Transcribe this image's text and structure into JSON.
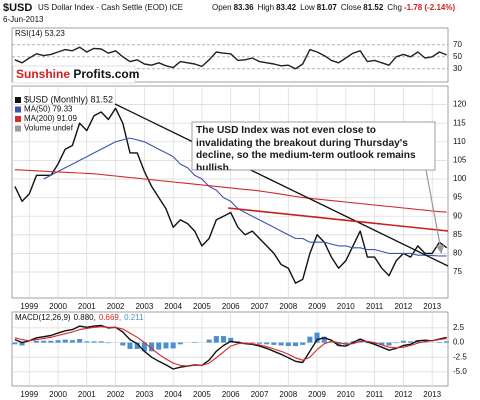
{
  "header": {
    "symbol": "$USD",
    "name": "US Dollar Index - Cash Settle (EOD) ICE",
    "date": "6-Jun-2013",
    "quote": [
      {
        "label": "Open",
        "value": "83.36"
      },
      {
        "label": "High",
        "value": "83.42"
      },
      {
        "label": "Low",
        "value": "81.07"
      },
      {
        "label": "Close",
        "value": "81.52"
      },
      {
        "label": "Chg",
        "value": "-1.78 (-2.14%)"
      }
    ]
  },
  "logo": {
    "first": "Sunshine",
    "second": "Profits.com"
  },
  "chart_data": [
    {
      "type": "line",
      "title": "RSI(14) 53.23",
      "grid_style": "dashed",
      "x": [
        1998.5,
        1998.75,
        1999,
        1999.25,
        1999.5,
        1999.75,
        2000,
        2000.25,
        2000.5,
        2000.75,
        2001,
        2001.25,
        2001.5,
        2001.75,
        2002,
        2002.25,
        2002.5,
        2002.75,
        2003,
        2003.25,
        2003.5,
        2003.75,
        2004,
        2004.25,
        2004.5,
        2004.75,
        2005,
        2005.25,
        2005.5,
        2005.75,
        2006,
        2006.25,
        2006.5,
        2006.75,
        2007,
        2007.25,
        2007.5,
        2007.75,
        2008,
        2008.25,
        2008.5,
        2008.75,
        2009,
        2009.25,
        2009.5,
        2009.75,
        2010,
        2010.25,
        2010.5,
        2010.75,
        2011,
        2011.25,
        2011.5,
        2011.75,
        2012,
        2012.25,
        2012.5,
        2012.75,
        2013,
        2013.25,
        2013.5
      ],
      "xlim": [
        1998.4,
        2013.55
      ],
      "ylim": [
        8,
        98
      ],
      "yticks": [
        70,
        50,
        30
      ],
      "series": [
        {
          "color": "#222222",
          "values": [
            45,
            40,
            48,
            55,
            52,
            54,
            58,
            62,
            60,
            66,
            58,
            64,
            63,
            56,
            60,
            50,
            42,
            45,
            38,
            36,
            40,
            35,
            32,
            42,
            40,
            38,
            34,
            45,
            58,
            56,
            55,
            44,
            45,
            48,
            42,
            40,
            38,
            35,
            36,
            30,
            38,
            62,
            58,
            52,
            44,
            40,
            48,
            56,
            60,
            42,
            44,
            40,
            36,
            50,
            54,
            50,
            58,
            48,
            50,
            58,
            53.23
          ]
        }
      ]
    },
    {
      "type": "line",
      "annotation": "The USD Index was not even close to invalidating the breakout during Thursday's decline, so the medium-term outlook remains bullish.",
      "legend_extra": [
        {
          "name": "Volume undef",
          "color": "#9a9a9a"
        }
      ],
      "x": [
        1998.5,
        1998.75,
        1999,
        1999.25,
        1999.5,
        1999.75,
        2000,
        2000.25,
        2000.5,
        2000.75,
        2001,
        2001.25,
        2001.5,
        2001.75,
        2002,
        2002.25,
        2002.5,
        2002.75,
        2003,
        2003.25,
        2003.5,
        2003.75,
        2004,
        2004.25,
        2004.5,
        2004.75,
        2005,
        2005.25,
        2005.5,
        2005.75,
        2006,
        2006.25,
        2006.5,
        2006.75,
        2007,
        2007.25,
        2007.5,
        2007.75,
        2008,
        2008.25,
        2008.5,
        2008.75,
        2009,
        2009.25,
        2009.5,
        2009.75,
        2010,
        2010.25,
        2010.5,
        2010.75,
        2011,
        2011.25,
        2011.5,
        2011.75,
        2012,
        2012.25,
        2012.5,
        2012.75,
        2013,
        2013.25,
        2013.5
      ],
      "xlim": [
        1998.4,
        2013.55
      ],
      "xticks": [
        1999,
        2000,
        2001,
        2002,
        2003,
        2004,
        2005,
        2006,
        2007,
        2008,
        2009,
        2010,
        2011,
        2012,
        2013
      ],
      "ylim": [
        68,
        125
      ],
      "yticks": [
        120,
        115,
        110,
        105,
        100,
        95,
        90,
        85,
        80,
        75
      ],
      "series": [
        {
          "name": "$USD (Monthly) 81.52",
          "color": "#111111",
          "values": [
            98,
            94,
            96,
            101,
            101,
            101,
            104,
            108,
            109,
            115,
            113,
            117,
            118,
            116,
            119,
            115,
            107,
            107,
            102,
            98,
            95,
            92,
            87,
            89,
            88,
            86,
            82,
            84,
            89,
            90,
            91,
            87,
            85,
            86,
            84,
            82,
            80,
            77,
            76,
            72,
            73,
            80,
            85,
            83,
            79,
            76,
            78,
            82,
            86,
            79,
            79,
            76,
            74,
            78,
            80,
            79,
            82,
            80,
            80,
            83,
            81.52
          ]
        },
        {
          "name": "MA(50) 79.33",
          "color": "#3a56a8",
          "values": [
            null,
            null,
            null,
            null,
            100,
            101,
            102,
            103,
            104,
            105,
            106,
            107,
            108,
            109,
            110,
            110.5,
            111,
            110.5,
            110,
            109,
            108,
            107,
            106,
            104,
            103,
            101,
            100,
            98,
            97,
            95,
            94,
            92,
            91,
            90,
            89,
            88,
            87,
            86,
            85,
            84,
            84,
            83,
            83,
            83,
            82.5,
            82,
            82,
            81.5,
            81.5,
            81,
            81,
            80.5,
            80,
            80,
            80,
            80,
            79.5,
            79.5,
            79.4,
            79.3,
            79.33
          ]
        },
        {
          "name": "MA(200) 91.09",
          "color": "#d42a2a",
          "values": [
            102.5,
            102.4,
            102.3,
            102.2,
            102.1,
            102,
            101.9,
            101.8,
            101.7,
            101.6,
            101.5,
            101.4,
            101.2,
            101,
            100.8,
            100.6,
            100.4,
            100.2,
            100,
            99.8,
            99.6,
            99.4,
            99.2,
            99,
            98.8,
            98.6,
            98.4,
            98.2,
            98,
            97.8,
            97.6,
            97.4,
            97.2,
            97,
            96.8,
            96.5,
            96.2,
            95.9,
            95.6,
            95.3,
            95,
            94.8,
            94.6,
            94.4,
            94.2,
            94,
            93.8,
            93.6,
            93.4,
            93.2,
            93,
            92.8,
            92.6,
            92.4,
            92.2,
            92,
            91.8,
            91.6,
            91.4,
            91.2,
            91.09
          ]
        }
      ]
    },
    {
      "type": "line",
      "title": "MACD(12,26,9)",
      "x": [
        1998.5,
        1998.75,
        1999,
        1999.25,
        1999.5,
        1999.75,
        2000,
        2000.25,
        2000.5,
        2000.75,
        2001,
        2001.25,
        2001.5,
        2001.75,
        2002,
        2002.25,
        2002.5,
        2002.75,
        2003,
        2003.25,
        2003.5,
        2003.75,
        2004,
        2004.25,
        2004.5,
        2004.75,
        2005,
        2005.25,
        2005.5,
        2005.75,
        2006,
        2006.25,
        2006.5,
        2006.75,
        2007,
        2007.25,
        2007.5,
        2007.75,
        2008,
        2008.25,
        2008.5,
        2008.75,
        2009,
        2009.25,
        2009.5,
        2009.75,
        2010,
        2010.25,
        2010.5,
        2010.75,
        2011,
        2011.25,
        2011.5,
        2011.75,
        2012,
        2012.25,
        2012.5,
        2012.75,
        2013,
        2013.25,
        2013.5
      ],
      "xlim": [
        1998.4,
        2013.55
      ],
      "xticks": [
        1999,
        2000,
        2001,
        2002,
        2003,
        2004,
        2005,
        2006,
        2007,
        2008,
        2009,
        2010,
        2011,
        2012,
        2013
      ],
      "ylim": [
        -7.4,
        5.2
      ],
      "yticks": [
        2.5,
        {
          "value": 0,
          "label": "0.0"
        },
        -2.5,
        {
          "value": -5,
          "label": "-5.0"
        }
      ],
      "series": [
        {
          "label": "0.880,",
          "color": "#111111",
          "values": [
            0.5,
            0,
            0.3,
            0.8,
            1,
            1.2,
            1.6,
            2,
            2.2,
            2.8,
            2.6,
            2.8,
            2.9,
            2.5,
            2.6,
            1.8,
            0.5,
            -0.2,
            -1.5,
            -2.5,
            -3.2,
            -3.8,
            -4.5,
            -4.2,
            -4,
            -3.8,
            -3.9,
            -3,
            -1.5,
            -0.5,
            0.2,
            0,
            -0.2,
            -0.3,
            -0.6,
            -1,
            -1.5,
            -2,
            -2.6,
            -3.2,
            -3.4,
            -1.5,
            0.5,
            0.8,
            0.4,
            -0.5,
            -0.6,
            0,
            0.6,
            0.1,
            -0.3,
            -0.8,
            -1.3,
            -1,
            -0.5,
            -0.3,
            0.3,
            0.4,
            0.3,
            0.6,
            0.88
          ]
        },
        {
          "label": "0.669,",
          "color": "#d42a2a",
          "values": [
            0.8,
            0.5,
            0.3,
            0.5,
            0.7,
            0.9,
            1.2,
            1.5,
            1.8,
            2.2,
            2.4,
            2.6,
            2.7,
            2.6,
            2.6,
            2.3,
            1.6,
            0.9,
            0,
            -1,
            -2,
            -2.8,
            -3.5,
            -3.9,
            -4,
            -3.9,
            -3.9,
            -3.5,
            -2.6,
            -1.6,
            -0.6,
            -0.2,
            -0.1,
            -0.2,
            -0.4,
            -0.7,
            -1.1,
            -1.5,
            -2,
            -2.6,
            -3,
            -2.5,
            -1.2,
            -0.2,
            0.2,
            0,
            -0.3,
            -0.2,
            0.2,
            0.2,
            0,
            -0.4,
            -0.8,
            -0.9,
            -0.8,
            -0.5,
            -0.1,
            0.2,
            0.3,
            0.5,
            0.669
          ]
        },
        {
          "label": "0.211",
          "color": "#4a8fd0",
          "style": "bars",
          "values": [
            -0.3,
            -0.5,
            0,
            0.3,
            0.3,
            0.3,
            0.4,
            0.5,
            0.4,
            0.6,
            0.2,
            0.2,
            0.2,
            -0.1,
            0,
            -0.5,
            -1.1,
            -1.1,
            -1.5,
            -1.5,
            -1.2,
            -1,
            -1,
            -0.3,
            0,
            0.1,
            0,
            0.5,
            1.1,
            1.1,
            0.8,
            0.2,
            -0.1,
            -0.1,
            -0.2,
            -0.3,
            -0.4,
            -0.5,
            -0.6,
            -0.6,
            -0.4,
            1,
            1.7,
            1,
            0.2,
            -0.5,
            -0.3,
            0.2,
            0.4,
            -0.1,
            -0.3,
            -0.4,
            -0.5,
            -0.1,
            0.3,
            0.2,
            0.4,
            0.2,
            0,
            0.1,
            0.211
          ]
        }
      ]
    }
  ]
}
